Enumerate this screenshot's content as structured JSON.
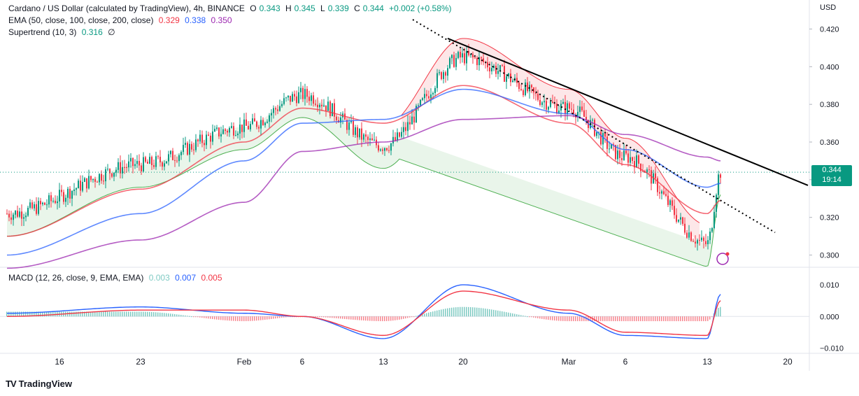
{
  "header": {
    "symbol": "Cardano / US Dollar (calculated by TradingView), 4h, BINANCE",
    "ohlc": [
      {
        "label": "O",
        "value": "0.343"
      },
      {
        "label": "H",
        "value": "0.345"
      },
      {
        "label": "L",
        "value": "0.339"
      },
      {
        "label": "C",
        "value": "0.344"
      }
    ],
    "change": "+0.002 (+0.58%)"
  },
  "indicators": {
    "ema_label": "EMA (50, close, 100, close, 200, close)",
    "ema_values": [
      {
        "value": "0.329",
        "color": "#f23645"
      },
      {
        "value": "0.338",
        "color": "#2962ff"
      },
      {
        "value": "0.350",
        "color": "#9c27b0"
      }
    ],
    "supertrend_label": "Supertrend (10, 3)",
    "supertrend_value": "0.316",
    "supertrend_extra": "∅",
    "macd_label": "MACD (12, 26, close, 9, EMA, EMA)",
    "macd_values": [
      {
        "value": "0.003",
        "color": "#80cbc4"
      },
      {
        "value": "0.007",
        "color": "#2962ff"
      },
      {
        "value": "0.005",
        "color": "#f23645"
      }
    ]
  },
  "axis": {
    "currency": "USD",
    "price_ticks": [
      "0.420",
      "0.400",
      "0.380",
      "0.360",
      "0.340",
      "0.320",
      "0.300"
    ],
    "macd_ticks": [
      "0.010",
      "0.000",
      "−0.010"
    ],
    "time_ticks": [
      "16",
      "23",
      "Feb",
      "6",
      "13",
      "20",
      "Mar",
      "6",
      "13",
      "20"
    ]
  },
  "last_price": {
    "value": "0.344",
    "countdown": "19:14"
  },
  "brand": {
    "name": "TradingView",
    "logo": "TV"
  },
  "colors": {
    "up": "#089981",
    "down": "#f23645",
    "ema50": "#f23645",
    "ema100": "#2962ff",
    "ema200": "#9c27b0",
    "macd": "#2962ff",
    "signal": "#f23645"
  },
  "chart_data": {
    "type": "line",
    "title": "Cardano / US Dollar (calculated by TradingView), 4h, BINANCE",
    "x": [
      "16",
      "23",
      "Feb",
      "6",
      "13",
      "20",
      "Mar",
      "6",
      "13",
      "20"
    ],
    "y_range": [
      0.295,
      0.425
    ],
    "series": [
      {
        "name": "Price",
        "values": [
          0.322,
          0.348,
          0.368,
          0.385,
          0.358,
          0.405,
          0.378,
          0.352,
          0.306,
          0.344
        ]
      },
      {
        "name": "EMA 50",
        "values": [
          0.31,
          0.335,
          0.36,
          0.378,
          0.37,
          0.39,
          0.37,
          0.348,
          0.322,
          0.329
        ]
      },
      {
        "name": "EMA 100",
        "values": [
          0.3,
          0.322,
          0.35,
          0.37,
          0.372,
          0.388,
          0.375,
          0.356,
          0.336,
          0.338
        ]
      },
      {
        "name": "EMA 200",
        "values": [
          0.293,
          0.308,
          0.328,
          0.355,
          0.36,
          0.372,
          0.374,
          0.364,
          0.352,
          0.35
        ]
      },
      {
        "name": "MACD",
        "values": [
          0.001,
          0.003,
          0.001,
          0.0,
          -0.007,
          0.01,
          0.001,
          -0.006,
          -0.007,
          0.007
        ]
      },
      {
        "name": "Signal",
        "values": [
          0.0,
          0.002,
          0.002,
          0.0,
          -0.006,
          0.008,
          0.002,
          -0.005,
          -0.006,
          0.005
        ]
      }
    ],
    "macd_range": [
      -0.011,
      0.012
    ],
    "trendlines": [
      {
        "style": "solid",
        "from": {
          "x": "20",
          "y": 0.415
        },
        "to": {
          "x": "20",
          "y": 0.337
        }
      },
      {
        "style": "dotted",
        "from": {
          "x": "13",
          "y": 0.425
        },
        "to": {
          "x": "20",
          "y": 0.312
        }
      }
    ],
    "last_value": 0.344,
    "legend": "top-left"
  }
}
